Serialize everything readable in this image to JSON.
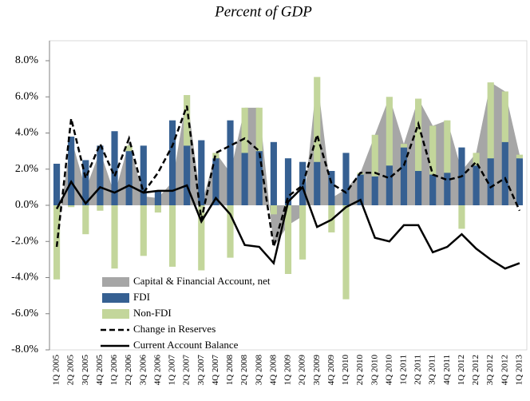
{
  "chart_data": {
    "type": "combo",
    "title": "Percent of  GDP",
    "categories": [
      "1Q 2005",
      "2Q 2005",
      "3Q 2005",
      "4Q 2005",
      "1Q 2006",
      "2Q 2006",
      "3Q 2006",
      "4Q 2006",
      "1Q 2007",
      "2Q 2007",
      "3Q 2007",
      "4Q 2007",
      "1Q 2008",
      "2Q 2008",
      "3Q 2008",
      "4Q 2008",
      "1Q 2009",
      "2Q 2009",
      "3Q 2009",
      "4Q 2009",
      "1Q 2010",
      "2Q 2010",
      "3Q 2010",
      "4Q 2010",
      "1Q 2011",
      "2Q 2011",
      "3Q 2011",
      "4Q 2011",
      "1Q 2012",
      "2Q 2012",
      "3Q 2012",
      "4Q 2012",
      "1Q 2013"
    ],
    "ylim": [
      -8,
      8
    ],
    "yticks": [
      {
        "value": -8,
        "label": "-8.0%"
      },
      {
        "value": -6,
        "label": "-6.0%"
      },
      {
        "value": -4,
        "label": "-4.0%"
      },
      {
        "value": -2,
        "label": "-2.0%"
      },
      {
        "value": 0,
        "label": "0.0%"
      },
      {
        "value": 2,
        "label": "2.0%"
      },
      {
        "value": 4,
        "label": "4.0%"
      },
      {
        "value": 6,
        "label": "6.0%"
      },
      {
        "value": 8,
        "label": "8.0%"
      }
    ],
    "series": [
      {
        "name": "Capital & Financial Account, net",
        "kind": "area",
        "color": "#a6a6a6",
        "values": [
          -1.8,
          3.7,
          0.9,
          3.0,
          0.6,
          3.5,
          0.5,
          0.4,
          1.3,
          6.1,
          0.0,
          2.9,
          1.8,
          5.4,
          5.4,
          -2.3,
          -1.1,
          -0.6,
          7.1,
          0.4,
          0.9,
          1.8,
          3.9,
          6.0,
          3.4,
          5.9,
          4.4,
          4.7,
          1.9,
          2.9,
          6.8,
          6.3,
          2.8
        ]
      },
      {
        "name": "FDI",
        "kind": "bar",
        "color": "#366092",
        "values": [
          2.3,
          3.8,
          2.5,
          3.3,
          4.1,
          3.0,
          3.3,
          0.8,
          4.7,
          3.3,
          3.6,
          2.6,
          4.7,
          2.9,
          3.0,
          3.5,
          2.6,
          2.4,
          2.4,
          1.9,
          2.9,
          1.7,
          1.6,
          2.2,
          3.2,
          1.9,
          1.7,
          1.8,
          3.2,
          2.2,
          2.6,
          3.5,
          2.6
        ]
      },
      {
        "name": "Non-FDI",
        "kind": "bar",
        "color": "#c3d69b",
        "values": [
          -4.1,
          -0.1,
          -1.6,
          -0.3,
          -3.5,
          0.3,
          -2.8,
          -0.4,
          -3.4,
          2.8,
          -3.6,
          0.3,
          -2.9,
          2.5,
          2.4,
          -0.5,
          -3.8,
          -3.0,
          4.7,
          -1.5,
          -5.2,
          0.1,
          2.3,
          3.8,
          0.2,
          4.0,
          2.7,
          2.9,
          -1.3,
          0.7,
          4.2,
          2.8,
          0.2
        ]
      },
      {
        "name": "Change in Reserves",
        "kind": "line",
        "dash": true,
        "color": "#000000",
        "values": [
          -2.3,
          4.8,
          1.5,
          3.4,
          1.6,
          3.7,
          0.7,
          1.8,
          3.3,
          5.5,
          -0.8,
          2.9,
          3.3,
          3.7,
          3.0,
          -2.3,
          0.5,
          1.1,
          3.9,
          1.2,
          0.7,
          1.8,
          1.8,
          1.5,
          2.2,
          4.5,
          1.7,
          1.4,
          1.6,
          2.4,
          1.0,
          1.5,
          -0.3
        ]
      },
      {
        "name": "Current Account Balance",
        "kind": "line",
        "dash": false,
        "color": "#000000",
        "values": [
          -0.2,
          1.3,
          0.1,
          1.0,
          0.7,
          1.1,
          0.7,
          0.8,
          0.8,
          1.1,
          -0.9,
          0.4,
          -0.5,
          -2.2,
          -2.3,
          -3.2,
          0.2,
          1.0,
          -1.2,
          -0.8,
          -0.1,
          0.3,
          -1.8,
          -2.0,
          -1.1,
          -1.1,
          -2.6,
          -2.3,
          -1.6,
          -2.4,
          -3.0,
          -3.5,
          -3.2
        ]
      }
    ]
  }
}
